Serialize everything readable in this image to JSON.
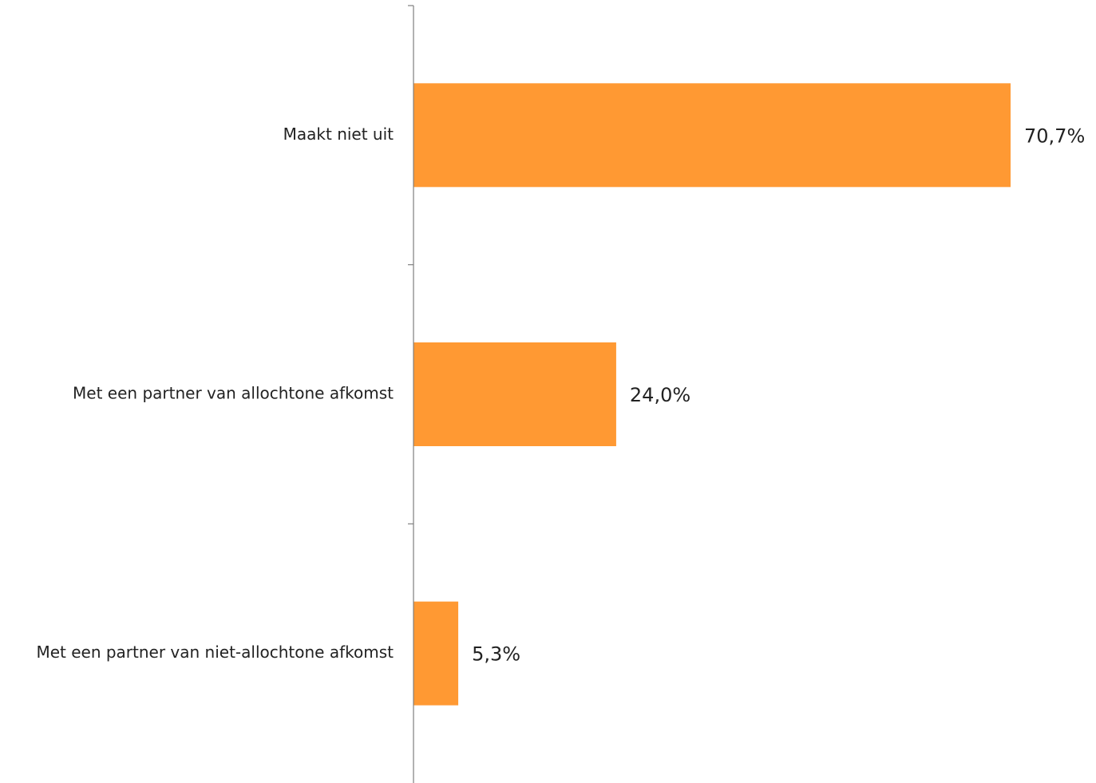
{
  "chart_data": {
    "type": "bar",
    "orientation": "horizontal",
    "categories": [
      "Maakt niet uit",
      "Met een partner van allochtone afkomst",
      "Met een partner van niet-allochtone afkomst"
    ],
    "values": [
      70.7,
      24.0,
      5.3
    ],
    "data_labels": [
      "70,7%",
      "24,0%",
      "5,3%"
    ],
    "unit": "%",
    "title": "",
    "xlabel": "",
    "ylabel": "",
    "xlim": [
      0,
      70.7
    ],
    "grid": false,
    "legend": "none",
    "bar_color": "#FF9933",
    "axis_color": "#7F7F7F"
  }
}
